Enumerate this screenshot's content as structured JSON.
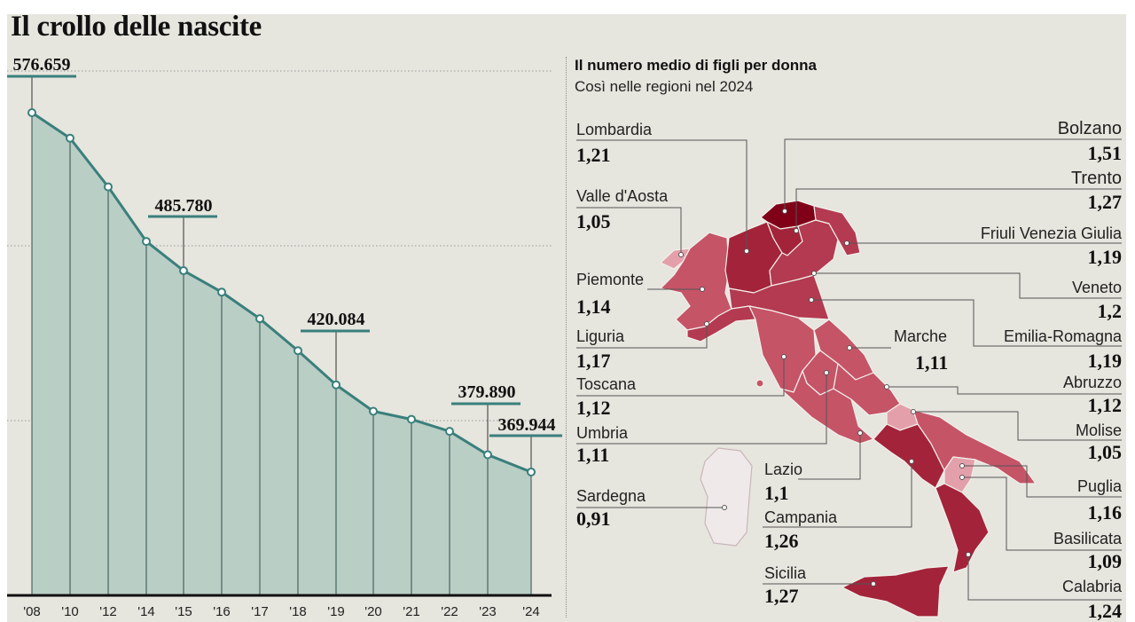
{
  "title": "Il crollo delle nascite",
  "chart_data": [
    {
      "type": "area",
      "title": "Il crollo delle nascite",
      "categories": [
        "'08",
        "'10",
        "'12",
        "'14",
        "'15",
        "'16",
        "'17",
        "'18",
        "'19",
        "'20",
        "'21",
        "'22",
        "'23",
        "'24"
      ],
      "values": [
        576659,
        562000,
        534000,
        502596,
        485780,
        473438,
        458151,
        439747,
        420084,
        404892,
        400249,
        393333,
        379890,
        369944
      ],
      "labeled": [
        {
          "index": 0,
          "label": "576.659"
        },
        {
          "index": 4,
          "label": "485.780"
        },
        {
          "index": 8,
          "label": "420.084"
        },
        {
          "index": 12,
          "label": "379.890"
        },
        {
          "index": 13,
          "label": "369.944"
        }
      ],
      "ylim": [
        300000,
        600000
      ],
      "grid": true,
      "colors": {
        "fill": "#b9cec5",
        "line": "#3a7f7c",
        "label_bar": "#3a7f7c"
      }
    },
    {
      "type": "map",
      "title": "Il numero medio di figli per donna",
      "subtitle": "Così nelle regioni nel 2024",
      "regions": [
        {
          "name": "Lombardia",
          "value": "1,21"
        },
        {
          "name": "Valle d'Aosta",
          "value": "1,05"
        },
        {
          "name": "Piemonte",
          "value": "1,14"
        },
        {
          "name": "Liguria",
          "value": "1,17"
        },
        {
          "name": "Toscana",
          "value": "1,12"
        },
        {
          "name": "Umbria",
          "value": "1,11"
        },
        {
          "name": "Sardegna",
          "value": "0,91"
        },
        {
          "name": "Lazio",
          "value": "1,1"
        },
        {
          "name": "Campania",
          "value": "1,26"
        },
        {
          "name": "Sicilia",
          "value": "1,27"
        },
        {
          "name": "Marche",
          "value": "1,11"
        },
        {
          "name": "Bolzano",
          "value": "1,51"
        },
        {
          "name": "Trento",
          "value": "1,27"
        },
        {
          "name": "Friuli Venezia Giulia",
          "value": "1,19"
        },
        {
          "name": "Veneto",
          "value": "1,2"
        },
        {
          "name": "Emilia-Romagna",
          "value": "1,19"
        },
        {
          "name": "Abruzzo",
          "value": "1,12"
        },
        {
          "name": "Molise",
          "value": "1,05"
        },
        {
          "name": "Puglia",
          "value": "1,16"
        },
        {
          "name": "Basilicata",
          "value": "1,09"
        },
        {
          "name": "Calabria",
          "value": "1,24"
        }
      ],
      "colors": {
        "low": "#f0e9ea",
        "mid_low": "#e3a0aa",
        "mid": "#c85a6a",
        "high": "#a3243a",
        "max": "#800018"
      }
    }
  ]
}
